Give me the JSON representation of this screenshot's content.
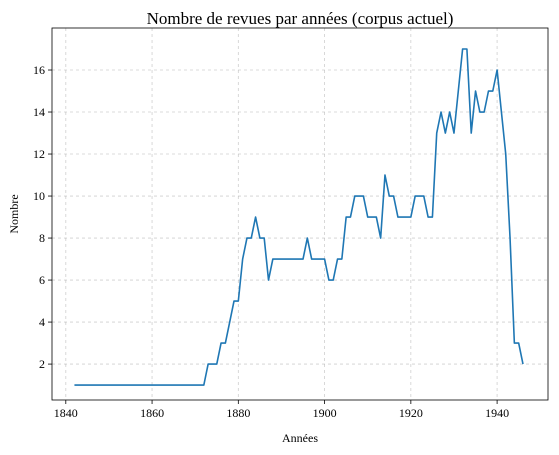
{
  "chart_data": {
    "type": "line",
    "title": "Nombre de revues par années (corpus actuel)",
    "xlabel": "Années",
    "ylabel": "Nombre",
    "x": [
      1842,
      1843,
      1844,
      1845,
      1846,
      1847,
      1848,
      1849,
      1850,
      1851,
      1852,
      1853,
      1854,
      1855,
      1856,
      1857,
      1858,
      1859,
      1860,
      1861,
      1862,
      1863,
      1864,
      1865,
      1866,
      1867,
      1868,
      1869,
      1870,
      1871,
      1872,
      1873,
      1874,
      1875,
      1876,
      1877,
      1878,
      1879,
      1880,
      1881,
      1882,
      1883,
      1884,
      1885,
      1886,
      1887,
      1888,
      1889,
      1890,
      1891,
      1892,
      1893,
      1894,
      1895,
      1896,
      1897,
      1898,
      1899,
      1900,
      1901,
      1902,
      1903,
      1904,
      1905,
      1906,
      1907,
      1908,
      1909,
      1910,
      1911,
      1912,
      1913,
      1914,
      1915,
      1916,
      1917,
      1918,
      1919,
      1920,
      1921,
      1922,
      1923,
      1924,
      1925,
      1926,
      1927,
      1928,
      1929,
      1930,
      1931,
      1932,
      1933,
      1934,
      1935,
      1936,
      1937,
      1938,
      1939,
      1940,
      1941,
      1942,
      1943,
      1944,
      1945,
      1946
    ],
    "series": [
      {
        "name": "Nombre",
        "color": "#1f77b4",
        "values": [
          1,
          1,
          1,
          1,
          1,
          1,
          1,
          1,
          1,
          1,
          1,
          1,
          1,
          1,
          1,
          1,
          1,
          1,
          1,
          1,
          1,
          1,
          1,
          1,
          1,
          1,
          1,
          1,
          1,
          1,
          1,
          2,
          2,
          2,
          3,
          3,
          4,
          5,
          5,
          7,
          8,
          8,
          9,
          8,
          8,
          6,
          7,
          7,
          7,
          7,
          7,
          7,
          7,
          7,
          8,
          7,
          7,
          7,
          7,
          6,
          6,
          7,
          7,
          9,
          9,
          10,
          10,
          10,
          9,
          9,
          9,
          8,
          11,
          10,
          10,
          9,
          9,
          9,
          9,
          10,
          10,
          10,
          9,
          9,
          13,
          14,
          13,
          14,
          13,
          15,
          17,
          17,
          13,
          15,
          14,
          14,
          15,
          15,
          16,
          14,
          12,
          8,
          3,
          3,
          2
        ]
      }
    ],
    "xlim": [
      1836.8,
      1951.8
    ],
    "xticks": [
      1840,
      1860,
      1880,
      1900,
      1920,
      1940
    ],
    "ylim": [
      0.29,
      18
    ],
    "yticks": [
      2,
      4,
      6,
      8,
      10,
      12,
      14,
      16
    ],
    "grid": true
  }
}
